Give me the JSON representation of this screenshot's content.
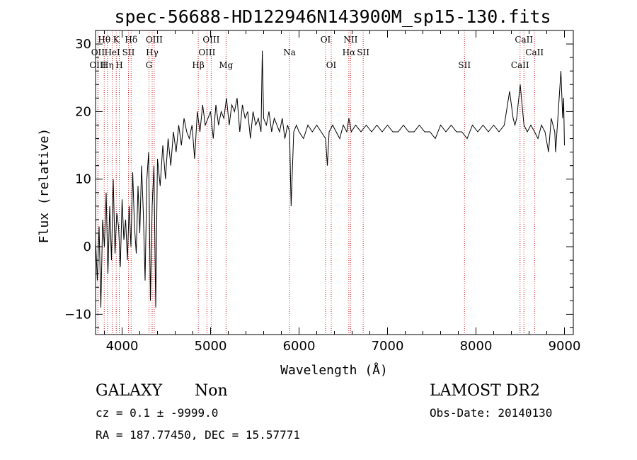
{
  "chart_data": {
    "type": "line",
    "title": "spec-56688-HD122946N143900M_sp15-130.fits",
    "xlabel": "Wavelength (Å)",
    "ylabel": "Flux (relative)",
    "xlim": [
      3700,
      9100
    ],
    "ylim": [
      -13,
      32
    ],
    "xticks": [
      "4000",
      "5000",
      "6000",
      "7000",
      "8000",
      "9000"
    ],
    "yticks": [
      "-10",
      "0",
      "10",
      "20",
      "30"
    ],
    "series": [
      {
        "x": [
          3700,
          3720,
          3740,
          3760,
          3780,
          3800,
          3820,
          3840,
          3860,
          3880,
          3900,
          3920,
          3940,
          3960,
          3980,
          4000,
          4020,
          4040,
          4060,
          4080,
          4100,
          4120,
          4140,
          4160,
          4180,
          4200,
          4220,
          4240,
          4260,
          4280,
          4300,
          4320,
          4340,
          4360,
          4380,
          4400,
          4430,
          4460,
          4490,
          4520,
          4550,
          4580,
          4610,
          4640,
          4670,
          4700,
          4730,
          4760,
          4790,
          4820,
          4850,
          4880,
          4910,
          4940,
          4970,
          5000,
          5030,
          5060,
          5090,
          5120,
          5150,
          5180,
          5210,
          5240,
          5270,
          5300,
          5330,
          5360,
          5390,
          5420,
          5450,
          5480,
          5510,
          5540,
          5570,
          5585,
          5600,
          5630,
          5660,
          5690,
          5720,
          5750,
          5780,
          5810,
          5840,
          5870,
          5893,
          5910,
          5940,
          5970,
          6000,
          6050,
          6100,
          6150,
          6200,
          6250,
          6300,
          6320,
          6340,
          6380,
          6420,
          6460,
          6500,
          6540,
          6563,
          6590,
          6640,
          6700,
          6760,
          6820,
          6880,
          6940,
          7000,
          7060,
          7120,
          7180,
          7240,
          7300,
          7360,
          7420,
          7480,
          7540,
          7600,
          7660,
          7720,
          7780,
          7840,
          7900,
          7960,
          8020,
          8080,
          8140,
          8200,
          8260,
          8320,
          8380,
          8420,
          8440,
          8460,
          8500,
          8542,
          8580,
          8620,
          8662,
          8700,
          8740,
          8780,
          8820,
          8850,
          8870,
          8890,
          8900,
          8930,
          8960,
          8980,
          8990,
          9000
        ],
        "y": [
          1,
          -5,
          3,
          -9,
          4,
          0,
          8,
          -4,
          6,
          -2,
          10,
          -1,
          5,
          3,
          -3,
          7,
          1,
          4,
          -2,
          6,
          0,
          11,
          3,
          -1,
          9,
          2,
          12,
          5,
          -5,
          10,
          14,
          -8,
          6,
          12,
          -9,
          13,
          9,
          15,
          10,
          16,
          12,
          17,
          14,
          18,
          15,
          19,
          17,
          16,
          18,
          13,
          20,
          17,
          21,
          18,
          19,
          20,
          16,
          21,
          18,
          20,
          19,
          22,
          18,
          21,
          20,
          22,
          17,
          21,
          19,
          20,
          16,
          20,
          18,
          19,
          17,
          29,
          19,
          18,
          20,
          17,
          19,
          18,
          17,
          19,
          16,
          18,
          17,
          6,
          17,
          18,
          17,
          16,
          18,
          17,
          18,
          17,
          16,
          12,
          17,
          18,
          17,
          16,
          18,
          17,
          19,
          17,
          18,
          17,
          18,
          17,
          18,
          17,
          18,
          17,
          17,
          18,
          17,
          17,
          18,
          17,
          17,
          16,
          18,
          17,
          18,
          17,
          17,
          16,
          18,
          17,
          18,
          17,
          18,
          17,
          18,
          23,
          19,
          18,
          19,
          24,
          18,
          17,
          18,
          17,
          16,
          18,
          17,
          14,
          19,
          18,
          17,
          14,
          20,
          26,
          19,
          22,
          15
        ]
      }
    ],
    "line_markers": [
      {
        "label": "Hθ",
        "x": 3798,
        "row": 0
      },
      {
        "label": "OII",
        "x": 3727,
        "row": 1
      },
      {
        "label": "OIII",
        "x": 3727,
        "row": 2
      },
      {
        "label": "K",
        "x": 3934,
        "row": 0
      },
      {
        "label": "HeI",
        "x": 3889,
        "row": 1
      },
      {
        "label": "Hη",
        "x": 3835,
        "row": 2
      },
      {
        "label": "SII",
        "x": 4072,
        "row": 1
      },
      {
        "label": "H",
        "x": 3968,
        "row": 2
      },
      {
        "label": "Hδ",
        "x": 4102,
        "row": 0
      },
      {
        "label": "OIII",
        "x": 4363,
        "row": 0
      },
      {
        "label": "Hγ",
        "x": 4340,
        "row": 1
      },
      {
        "label": "G",
        "x": 4304,
        "row": 2
      },
      {
        "label": "OIII",
        "x": 5007,
        "row": 0
      },
      {
        "label": "OIII",
        "x": 4959,
        "row": 1
      },
      {
        "label": "Hβ",
        "x": 4861,
        "row": 2
      },
      {
        "label": "Mg",
        "x": 5175,
        "row": 2
      },
      {
        "label": "Na",
        "x": 5893,
        "row": 1
      },
      {
        "label": "OI",
        "x": 6300,
        "row": 0
      },
      {
        "label": "OI",
        "x": 6364,
        "row": 2
      },
      {
        "label": "NII",
        "x": 6583,
        "row": 0
      },
      {
        "label": "Hα",
        "x": 6563,
        "row": 1
      },
      {
        "label": "SII",
        "x": 6725,
        "row": 1
      },
      {
        "label": "SII",
        "x": 7870,
        "row": 2
      },
      {
        "label": "CaII",
        "x": 8542,
        "row": 0
      },
      {
        "label": "CaII",
        "x": 8662,
        "row": 1
      },
      {
        "label": "CaII",
        "x": 8498,
        "row": 2
      }
    ]
  },
  "info": {
    "object_class": "GALAXY",
    "subclass": "Non",
    "survey": "LAMOST DR2",
    "cz": "cz = 0.1 ± -9999.0",
    "obs_date": "Obs-Date: 20140130",
    "coords": "RA = 187.77450, DEC =  15.57771"
  }
}
